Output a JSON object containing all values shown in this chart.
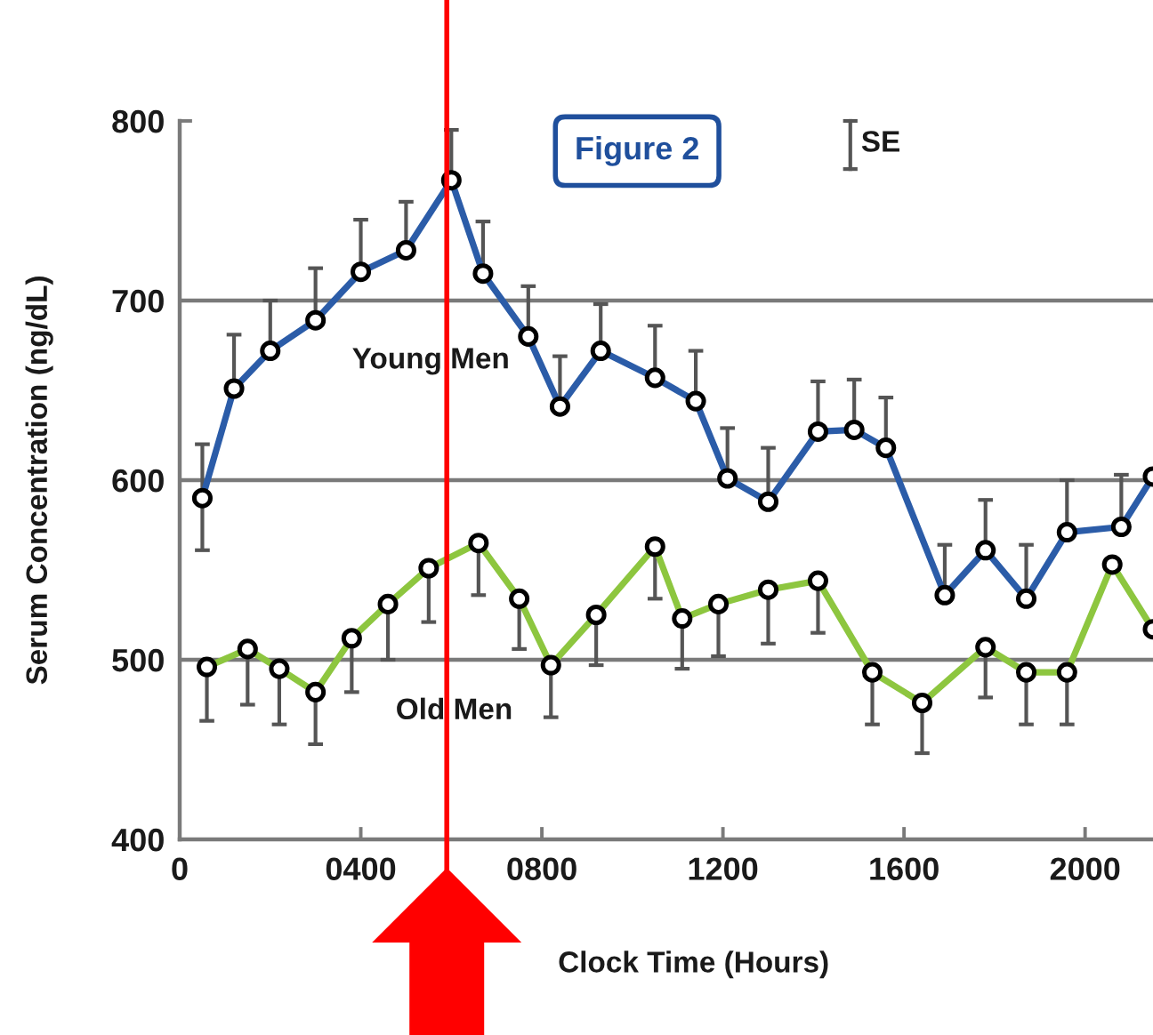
{
  "chart_data": {
    "type": "line",
    "title": "Figure 2",
    "xlabel": "Clock Time (Hours)",
    "ylabel": "Serum Concentration (ng/dL)",
    "annotations": [
      "SE"
    ],
    "xlim": [
      0,
      2150
    ],
    "xticks": [
      0,
      {
        "value": 400,
        "label": "0400"
      },
      {
        "value": 800,
        "label": "0800"
      },
      1200,
      1600,
      2000
    ],
    "ylim": [
      400,
      800
    ],
    "yticks": [
      400,
      500,
      600,
      700,
      800
    ],
    "grid": "y",
    "marker": "circle",
    "line_style": "solid",
    "series": [
      {
        "name": "Young Men",
        "color": "#2b5ca8",
        "x": [
          50,
          120,
          200,
          300,
          400,
          500,
          600,
          670,
          770,
          840,
          930,
          1050,
          1140,
          1210,
          1300,
          1410,
          1490,
          1560,
          1690,
          1780,
          1870,
          1960,
          2080,
          2150
        ],
        "values": [
          590,
          651,
          672,
          689,
          716,
          728,
          767,
          715,
          680,
          641,
          672,
          657,
          644,
          601,
          588,
          627,
          628,
          618,
          536,
          561,
          534,
          571,
          574,
          602
        ],
        "errors": [
          [
            561,
            620
          ],
          [
            651,
            681
          ],
          [
            672,
            700
          ],
          [
            689,
            718
          ],
          [
            716,
            745
          ],
          [
            728,
            755
          ],
          [
            767,
            795
          ],
          [
            715,
            744
          ],
          [
            680,
            708
          ],
          [
            641,
            669
          ],
          [
            672,
            698
          ],
          [
            657,
            686
          ],
          [
            644,
            672
          ],
          [
            601,
            629
          ],
          [
            588,
            618
          ],
          [
            627,
            655
          ],
          [
            628,
            656
          ],
          [
            618,
            646
          ],
          [
            536,
            564
          ],
          [
            561,
            589
          ],
          [
            534,
            564
          ],
          [
            571,
            600
          ],
          [
            574,
            603
          ],
          null
        ]
      },
      {
        "name": "Old Men",
        "color": "#8dc63f",
        "x": [
          60,
          150,
          220,
          300,
          380,
          460,
          550,
          660,
          750,
          820,
          920,
          1050,
          1110,
          1190,
          1300,
          1410,
          1530,
          1640,
          1780,
          1870,
          1960,
          2060,
          2150
        ],
        "values": [
          496,
          506,
          495,
          482,
          512,
          531,
          551,
          565,
          534,
          497,
          525,
          563,
          523,
          531,
          539,
          544,
          493,
          476,
          507,
          493,
          493,
          553,
          517
        ],
        "errors": [
          [
            466,
            496
          ],
          [
            475,
            506
          ],
          [
            464,
            495
          ],
          [
            453,
            482
          ],
          [
            482,
            512
          ],
          [
            500,
            531
          ],
          [
            521,
            551
          ],
          [
            536,
            565
          ],
          [
            506,
            534
          ],
          [
            468,
            497
          ],
          [
            497,
            525
          ],
          [
            534,
            563
          ],
          [
            495,
            523
          ],
          [
            502,
            531
          ],
          [
            509,
            539
          ],
          [
            515,
            544
          ],
          [
            464,
            493
          ],
          [
            448,
            476
          ],
          [
            479,
            507
          ],
          [
            464,
            493
          ],
          [
            464,
            493
          ],
          null,
          null
        ]
      }
    ],
    "ref_lines": [
      {
        "axis": "x",
        "value": 590,
        "color": "#ff0000"
      }
    ]
  }
}
